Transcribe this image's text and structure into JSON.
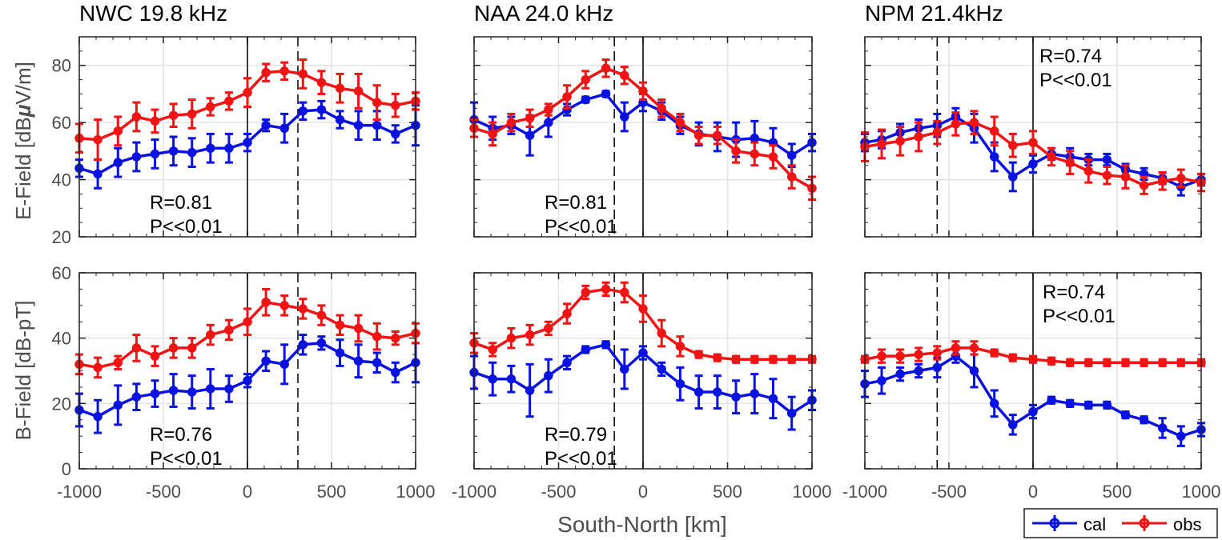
{
  "figure": {
    "xlabel": "South-North [km]",
    "ylabel_e": "E-Field [dB",
    "ylabel_e_mu": "μ",
    "ylabel_e_tail": "V/m]",
    "ylabel_b": "B-Field [dB-pT]",
    "xticks": [
      "-1000",
      "-500",
      "0",
      "500",
      "1000"
    ],
    "yticks_e": [
      "20",
      "40",
      "60",
      "80"
    ],
    "yticks_b": [
      "0",
      "20",
      "40",
      "60"
    ],
    "legend": {
      "cal": "cal",
      "obs": "obs"
    },
    "colors": {
      "cal": "#0a12e0",
      "obs": "#f01414",
      "grid": "#e3e3e3",
      "axis": "#222222"
    }
  },
  "chart_data": [
    {
      "type": "line",
      "title": "NWC 19.8 kHz",
      "field": "E",
      "ylim": [
        20,
        90
      ],
      "xlim": [
        -1000,
        1000
      ],
      "vlines": [
        {
          "x": 0,
          "style": "solid"
        },
        {
          "x": 300,
          "style": "dashed"
        }
      ],
      "annotation": {
        "r": "R=0.81",
        "p": "P<<0.01"
      },
      "x": [
        -1000,
        -890,
        -770,
        -660,
        -550,
        -440,
        -330,
        -220,
        -110,
        0,
        110,
        220,
        330,
        440,
        550,
        660,
        770,
        880,
        1000
      ],
      "series": [
        {
          "name": "cal",
          "values": [
            44,
            42,
            46,
            48,
            49,
            50,
            49.5,
            51,
            51,
            53,
            59,
            58,
            64,
            64.5,
            61,
            59,
            59,
            56,
            59
          ],
          "err": [
            3,
            5,
            5,
            5,
            5,
            5,
            5,
            5,
            5,
            3,
            2,
            5,
            3,
            3,
            3,
            5,
            5,
            3,
            7
          ]
        },
        {
          "name": "obs",
          "values": [
            54.5,
            54,
            57,
            62,
            60.5,
            62.5,
            63,
            65.5,
            67.5,
            70.5,
            77.5,
            78,
            77,
            74,
            72,
            71,
            67,
            66,
            67.5
          ],
          "err": [
            5,
            7,
            5,
            5,
            4,
            4,
            5,
            3,
            3,
            5,
            3,
            3,
            5,
            4,
            5,
            6,
            6,
            4,
            3
          ]
        }
      ]
    },
    {
      "type": "line",
      "title": "NAA 24.0 kHz",
      "field": "E",
      "ylim": [
        20,
        90
      ],
      "xlim": [
        -1000,
        1000
      ],
      "vlines": [
        {
          "x": 0,
          "style": "solid"
        },
        {
          "x": -170,
          "style": "dashed"
        }
      ],
      "annotation": {
        "r": "R=0.81",
        "p": "P<<0.01"
      },
      "x": [
        -1000,
        -890,
        -780,
        -670,
        -560,
        -450,
        -340,
        -220,
        -110,
        0,
        110,
        220,
        330,
        440,
        550,
        660,
        770,
        880,
        1000
      ],
      "series": [
        {
          "name": "cal",
          "values": [
            61,
            58,
            59,
            55.5,
            60,
            64.5,
            68,
            70,
            62,
            67,
            64,
            59,
            56,
            55,
            54,
            54.5,
            53,
            48.5,
            53
          ],
          "err": [
            6,
            4,
            3,
            7,
            5,
            2,
            1,
            1,
            5,
            3,
            3,
            3,
            4,
            5,
            6,
            6,
            5,
            4,
            3
          ]
        },
        {
          "name": "obs",
          "values": [
            58,
            56,
            60,
            61.5,
            64.5,
            69,
            75,
            79,
            76.5,
            71,
            65,
            60,
            55.5,
            55.5,
            50,
            49,
            48,
            41,
            37
          ],
          "err": [
            3,
            4,
            3,
            3,
            2,
            4,
            3,
            3,
            3,
            3,
            3,
            3,
            3,
            3,
            4,
            4,
            4,
            4,
            4
          ]
        }
      ]
    },
    {
      "type": "line",
      "title": "NPM 21.4kHz",
      "field": "E",
      "ylim": [
        20,
        90
      ],
      "xlim": [
        -1000,
        1000
      ],
      "vlines": [
        {
          "x": 0,
          "style": "solid"
        },
        {
          "x": -570,
          "style": "dashed"
        }
      ],
      "annotation": {
        "r": "R=0.74",
        "p": "P<<0.01"
      },
      "x": [
        -1000,
        -900,
        -790,
        -680,
        -570,
        -460,
        -350,
        -230,
        -120,
        0,
        110,
        220,
        330,
        440,
        550,
        660,
        770,
        880,
        1000
      ],
      "series": [
        {
          "name": "cal",
          "values": [
            53,
            54,
            56.5,
            58,
            59,
            62,
            58,
            48,
            41,
            45.5,
            49,
            48,
            47,
            47,
            43.5,
            42,
            40.5,
            37.5,
            40
          ],
          "err": [
            3,
            3,
            3,
            3,
            4,
            3,
            5,
            5,
            5,
            3,
            2,
            3,
            2,
            2,
            2,
            2,
            2,
            3,
            2
          ]
        },
        {
          "name": "obs",
          "values": [
            51.5,
            52.5,
            53.5,
            55,
            56.5,
            59.5,
            60,
            57,
            52,
            53,
            48,
            46,
            43,
            41.5,
            41,
            38,
            39.5,
            40.5,
            39
          ],
          "err": [
            5,
            5,
            5,
            5,
            4,
            4,
            4,
            5,
            4,
            4,
            3,
            4,
            4,
            3,
            4,
            3,
            3,
            3,
            3
          ]
        }
      ]
    },
    {
      "type": "line",
      "title": "",
      "field": "B",
      "ylim": [
        0,
        60
      ],
      "xlim": [
        -1000,
        1000
      ],
      "vlines": [
        {
          "x": 0,
          "style": "solid"
        },
        {
          "x": 300,
          "style": "dashed"
        }
      ],
      "annotation": {
        "r": "R=0.76",
        "p": "P<<0.01"
      },
      "x": [
        -1000,
        -890,
        -770,
        -660,
        -550,
        -440,
        -330,
        -220,
        -110,
        0,
        110,
        220,
        330,
        440,
        550,
        660,
        770,
        880,
        1000
      ],
      "series": [
        {
          "name": "cal",
          "values": [
            18,
            16,
            19.5,
            22,
            23,
            24,
            23.5,
            24.5,
            24.5,
            27,
            33,
            32,
            38,
            38.5,
            35.5,
            33,
            32.5,
            29.5,
            32.5
          ],
          "err": [
            5,
            5,
            6,
            4,
            4,
            5,
            5,
            6,
            4,
            2,
            3,
            6,
            3,
            2,
            4,
            5,
            3,
            3,
            6
          ]
        },
        {
          "name": "obs",
          "values": [
            32,
            31,
            32.5,
            37,
            34.5,
            37,
            37,
            41,
            42.5,
            45,
            51,
            50,
            49,
            47,
            44,
            43,
            40.5,
            40,
            41.5
          ],
          "err": [
            3,
            3,
            2,
            4,
            3,
            3,
            3,
            3,
            3,
            4,
            4,
            3,
            3,
            3,
            3,
            4,
            4,
            2,
            3
          ]
        }
      ]
    },
    {
      "type": "line",
      "title": "",
      "field": "B",
      "ylim": [
        0,
        60
      ],
      "xlim": [
        -1000,
        1000
      ],
      "vlines": [
        {
          "x": 0,
          "style": "solid"
        },
        {
          "x": -170,
          "style": "dashed"
        }
      ],
      "annotation": {
        "r": "R=0.79",
        "p": "P<<0.01"
      },
      "x": [
        -1000,
        -890,
        -780,
        -670,
        -560,
        -450,
        -340,
        -220,
        -110,
        0,
        110,
        220,
        330,
        440,
        550,
        660,
        770,
        880,
        1000
      ],
      "series": [
        {
          "name": "cal",
          "values": [
            29.5,
            27.5,
            27.5,
            24,
            28.5,
            32.5,
            36.5,
            38,
            30.5,
            35.5,
            30.5,
            26,
            23.5,
            23.5,
            22,
            23,
            21.5,
            17,
            21
          ],
          "err": [
            5,
            5,
            4,
            8,
            5,
            2,
            1,
            1,
            6,
            2,
            2,
            5,
            5,
            5,
            5,
            6,
            6,
            5,
            3
          ]
        },
        {
          "name": "obs",
          "values": [
            38.5,
            36.5,
            40,
            41,
            43,
            47.5,
            54,
            55,
            54,
            49,
            41.5,
            37.5,
            35,
            34,
            33.5,
            33.5,
            33.5,
            33.5,
            33.5
          ],
          "err": [
            3,
            2,
            3,
            3,
            2,
            3,
            2,
            2,
            3,
            4,
            4,
            3,
            1,
            1,
            1,
            1,
            1,
            1,
            1
          ]
        }
      ]
    },
    {
      "type": "line",
      "title": "",
      "field": "B",
      "ylim": [
        0,
        60
      ],
      "xlim": [
        -1000,
        1000
      ],
      "vlines": [
        {
          "x": 0,
          "style": "solid"
        },
        {
          "x": -570,
          "style": "dashed"
        }
      ],
      "annotation": {
        "r": "R=0.74",
        "p": "P<<0.01"
      },
      "x": [
        -1000,
        -900,
        -790,
        -680,
        -570,
        -460,
        -350,
        -230,
        -120,
        0,
        110,
        220,
        330,
        440,
        550,
        660,
        770,
        880,
        1000
      ],
      "series": [
        {
          "name": "cal",
          "values": [
            26,
            27,
            29,
            30,
            31,
            34.5,
            30,
            20,
            13.5,
            17.5,
            21,
            20,
            19.5,
            19.5,
            16.5,
            15,
            12.5,
            10,
            12
          ],
          "err": [
            4,
            4,
            2,
            2,
            3,
            2,
            5,
            4,
            3,
            2,
            1,
            1,
            1,
            1,
            1,
            1,
            3,
            3,
            2
          ]
        },
        {
          "name": "obs",
          "values": [
            33.5,
            34.5,
            34.5,
            35,
            35.5,
            37,
            37,
            35.5,
            34,
            33.5,
            33,
            32.5,
            32.5,
            32.5,
            32.5,
            32.5,
            32.5,
            32.5,
            32.5
          ],
          "err": [
            1,
            2,
            2,
            2,
            2,
            2,
            2,
            1,
            1,
            1,
            1,
            1,
            1,
            1,
            1,
            1,
            1,
            1,
            1
          ]
        }
      ]
    }
  ]
}
